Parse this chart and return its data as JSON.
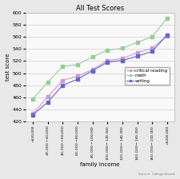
{
  "title": "All Test Scores",
  "xlabel": "family income",
  "ylabel": "test score",
  "source": "Source: College Board",
  "x_labels": [
    "<$20,000",
    "$20,000-$40,000",
    "$40,000-$60,000",
    "$60,000-$80,000",
    "$80,000-$100,000",
    "$100,000-$120,000",
    "$120,000-$140,000",
    "$140,000-$160,000",
    "$160,000-$200,000",
    ">$200,000"
  ],
  "critical_reading": [
    433,
    461,
    488,
    495,
    506,
    521,
    524,
    534,
    541,
    562
  ],
  "math": [
    457,
    485,
    511,
    514,
    527,
    538,
    541,
    551,
    560,
    591
  ],
  "writing": [
    431,
    452,
    480,
    490,
    504,
    518,
    521,
    528,
    536,
    563
  ],
  "ylim": [
    420,
    600
  ],
  "yticks": [
    420,
    440,
    460,
    480,
    500,
    520,
    540,
    560,
    580,
    600
  ],
  "cr_color": "#cc99cc",
  "math_color": "#99cc99",
  "writing_color": "#6666cc",
  "bg_color": "#e8e8e8",
  "plot_bg": "#f8f8f8",
  "grid_color": "#d0d0d0",
  "title_fontsize": 6,
  "label_fontsize": 5,
  "tick_fontsize": 4.5,
  "xtick_fontsize": 3.2,
  "legend_fontsize": 4,
  "source_fontsize": 3
}
